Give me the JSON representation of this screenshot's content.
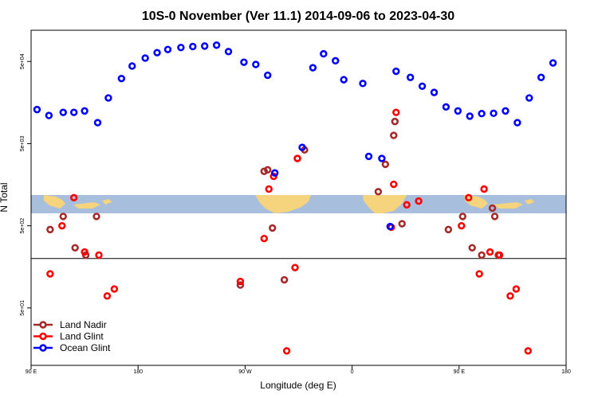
{
  "chart_data": {
    "type": "scatter",
    "title": "10S-0 November (Ver 11.1)   2014-09-06 to 2023-04-30",
    "xlabel": "Longitude (deg E)",
    "ylabel": "N Total",
    "x_ticks": [
      {
        "value": 90,
        "label": "90 E"
      },
      {
        "value": 180,
        "label": "180"
      },
      {
        "value": 270,
        "label": "90 W"
      },
      {
        "value": 360,
        "label": "0"
      },
      {
        "value": 450,
        "label": "90 E"
      },
      {
        "value": 540,
        "label": "180"
      }
    ],
    "y_ticks": [
      {
        "value": 50,
        "label": "5e+01"
      },
      {
        "value": 500,
        "label": "5e+02"
      },
      {
        "value": 5000,
        "label": "5e+03"
      },
      {
        "value": 50000,
        "label": "5e+04"
      }
    ],
    "xlim": [
      90,
      540
    ],
    "ylim": [
      10,
      120000
    ],
    "log_y": true,
    "reference_line_y": 200,
    "legend_position": "bottom-left",
    "series": [
      {
        "name": "Land Nadir",
        "color": "#a52a2a",
        "points": [
          [
            106,
            450
          ],
          [
            117,
            650
          ],
          [
            145,
            650
          ],
          [
            127,
            270
          ],
          [
            136,
            220
          ],
          [
            266,
            95
          ],
          [
            286,
            2300
          ],
          [
            289,
            2400
          ],
          [
            293,
            470
          ],
          [
            303,
            110
          ],
          [
            314,
            3300
          ],
          [
            320,
            4200
          ],
          [
            382,
            1300
          ],
          [
            388,
            2800
          ],
          [
            395,
            6300
          ],
          [
            396,
            9300
          ],
          [
            402,
            530
          ],
          [
            441,
            450
          ],
          [
            453,
            650
          ],
          [
            480,
            650
          ],
          [
            461,
            270
          ],
          [
            469,
            220
          ],
          [
            483,
            220
          ],
          [
            478,
            820
          ]
        ]
      },
      {
        "name": "Land Glint",
        "color": "#ff0000",
        "points": [
          [
            106,
            130
          ],
          [
            116,
            500
          ],
          [
            126,
            1100
          ],
          [
            135,
            240
          ],
          [
            147,
            220
          ],
          [
            154,
            70
          ],
          [
            160,
            85
          ],
          [
            266,
            105
          ],
          [
            286,
            350
          ],
          [
            290,
            1400
          ],
          [
            294,
            2000
          ],
          [
            305,
            15
          ],
          [
            312,
            155
          ],
          [
            314,
            3300
          ],
          [
            397,
            12000
          ],
          [
            406,
            900
          ],
          [
            416,
            1000
          ],
          [
            393,
            480
          ],
          [
            395,
            1600
          ],
          [
            452,
            500
          ],
          [
            458,
            1100
          ],
          [
            467,
            130
          ],
          [
            476,
            240
          ],
          [
            484,
            220
          ],
          [
            493,
            70
          ],
          [
            498,
            85
          ],
          [
            508,
            15
          ],
          [
            471,
            1400
          ]
        ]
      },
      {
        "name": "Ocean Glint",
        "color": "#0000ff",
        "points": [
          [
            95,
            13000
          ],
          [
            105,
            11000
          ],
          [
            117,
            12000
          ],
          [
            126,
            12000
          ],
          [
            135,
            12500
          ],
          [
            146,
            9000
          ],
          [
            155,
            18000
          ],
          [
            166,
            31000
          ],
          [
            175,
            44000
          ],
          [
            186,
            55000
          ],
          [
            196,
            64000
          ],
          [
            205,
            70000
          ],
          [
            216,
            74000
          ],
          [
            226,
            76000
          ],
          [
            236,
            77000
          ],
          [
            246,
            79000
          ],
          [
            256,
            66000
          ],
          [
            269,
            49000
          ],
          [
            279,
            46000
          ],
          [
            289,
            34000
          ],
          [
            295,
            2200
          ],
          [
            318,
            4500
          ],
          [
            327,
            42000
          ],
          [
            336,
            62000
          ],
          [
            346,
            51000
          ],
          [
            353,
            30000
          ],
          [
            369,
            27000
          ],
          [
            374,
            3500
          ],
          [
            385,
            3300
          ],
          [
            392,
            490
          ],
          [
            397,
            38000
          ],
          [
            409,
            32000
          ],
          [
            419,
            25000
          ],
          [
            429,
            21000
          ],
          [
            439,
            14000
          ],
          [
            449,
            12500
          ],
          [
            459,
            10800
          ],
          [
            469,
            11600
          ],
          [
            479,
            11700
          ],
          [
            489,
            12500
          ],
          [
            499,
            9000
          ],
          [
            509,
            18000
          ],
          [
            519,
            32000
          ],
          [
            529,
            48000
          ]
        ]
      }
    ]
  }
}
